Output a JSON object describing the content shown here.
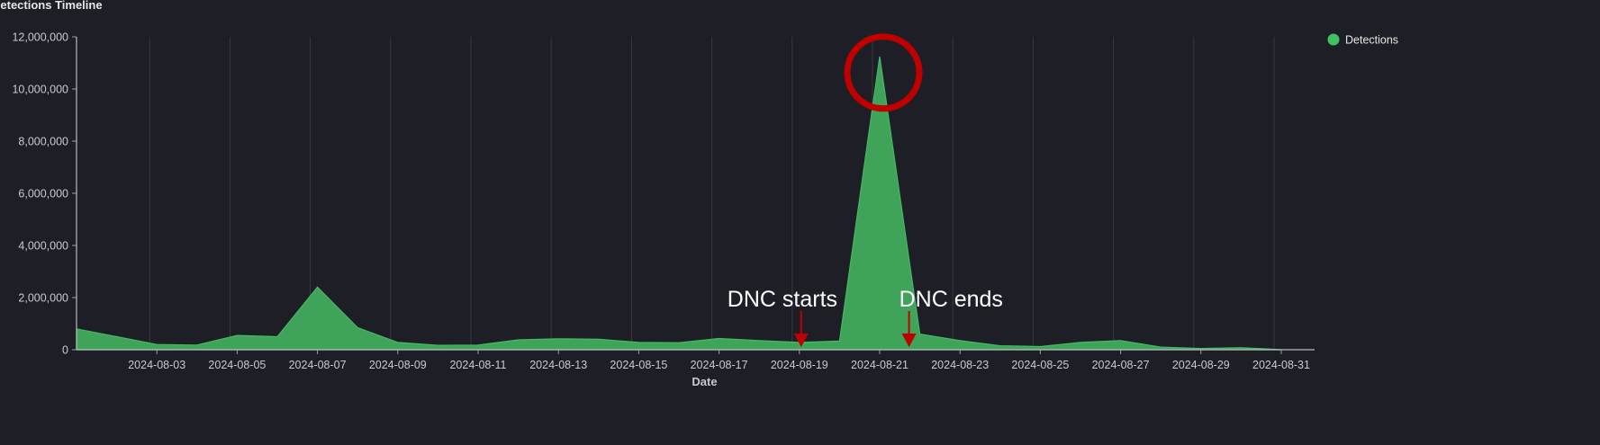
{
  "chart_title": "Detections Timeline",
  "chart_data": {
    "type": "area",
    "xlabel": "Date",
    "ylabel": "",
    "ylim": [
      0,
      12000000
    ],
    "yticks": [
      0,
      2000000,
      4000000,
      6000000,
      8000000,
      10000000,
      12000000
    ],
    "ytick_labels": [
      "0",
      "2,000,000",
      "4,000,000",
      "6,000,000",
      "8,000,000",
      "10,000,000",
      "12,000,000"
    ],
    "xlim": [
      "2024-08-01",
      "2024-08-31"
    ],
    "xtick_labels": [
      "2024-08-03",
      "2024-08-05",
      "2024-08-07",
      "2024-08-09",
      "2024-08-11",
      "2024-08-13",
      "2024-08-15",
      "2024-08-17",
      "2024-08-19",
      "2024-08-21",
      "2024-08-23",
      "2024-08-25",
      "2024-08-27",
      "2024-08-29",
      "2024-08-31"
    ],
    "grid": "vertical",
    "legend_position": "top-right",
    "series": [
      {
        "name": "Detections",
        "color": "#3fa35a",
        "x": [
          "2024-08-01",
          "2024-08-02",
          "2024-08-03",
          "2024-08-04",
          "2024-08-05",
          "2024-08-06",
          "2024-08-07",
          "2024-08-08",
          "2024-08-09",
          "2024-08-10",
          "2024-08-11",
          "2024-08-12",
          "2024-08-13",
          "2024-08-14",
          "2024-08-15",
          "2024-08-16",
          "2024-08-17",
          "2024-08-18",
          "2024-08-19",
          "2024-08-20",
          "2024-08-21",
          "2024-08-22",
          "2024-08-23",
          "2024-08-24",
          "2024-08-25",
          "2024-08-26",
          "2024-08-27",
          "2024-08-28",
          "2024-08-29",
          "2024-08-30",
          "2024-08-31"
        ],
        "values": [
          800000,
          500000,
          200000,
          180000,
          550000,
          500000,
          2400000,
          850000,
          280000,
          170000,
          180000,
          380000,
          420000,
          400000,
          280000,
          270000,
          430000,
          350000,
          280000,
          330000,
          11250000,
          600000,
          350000,
          150000,
          120000,
          280000,
          350000,
          100000,
          50000,
          80000,
          0
        ]
      }
    ],
    "annotations": [
      {
        "text": "DNC starts",
        "date": "2024-08-19",
        "type": "arrow",
        "color": "#c00000"
      },
      {
        "text": "DNC ends",
        "date": "2024-08-22",
        "type": "arrow",
        "color": "#c00000"
      },
      {
        "text": "",
        "date": "2024-08-21",
        "type": "circle",
        "color": "#c00000"
      }
    ]
  }
}
